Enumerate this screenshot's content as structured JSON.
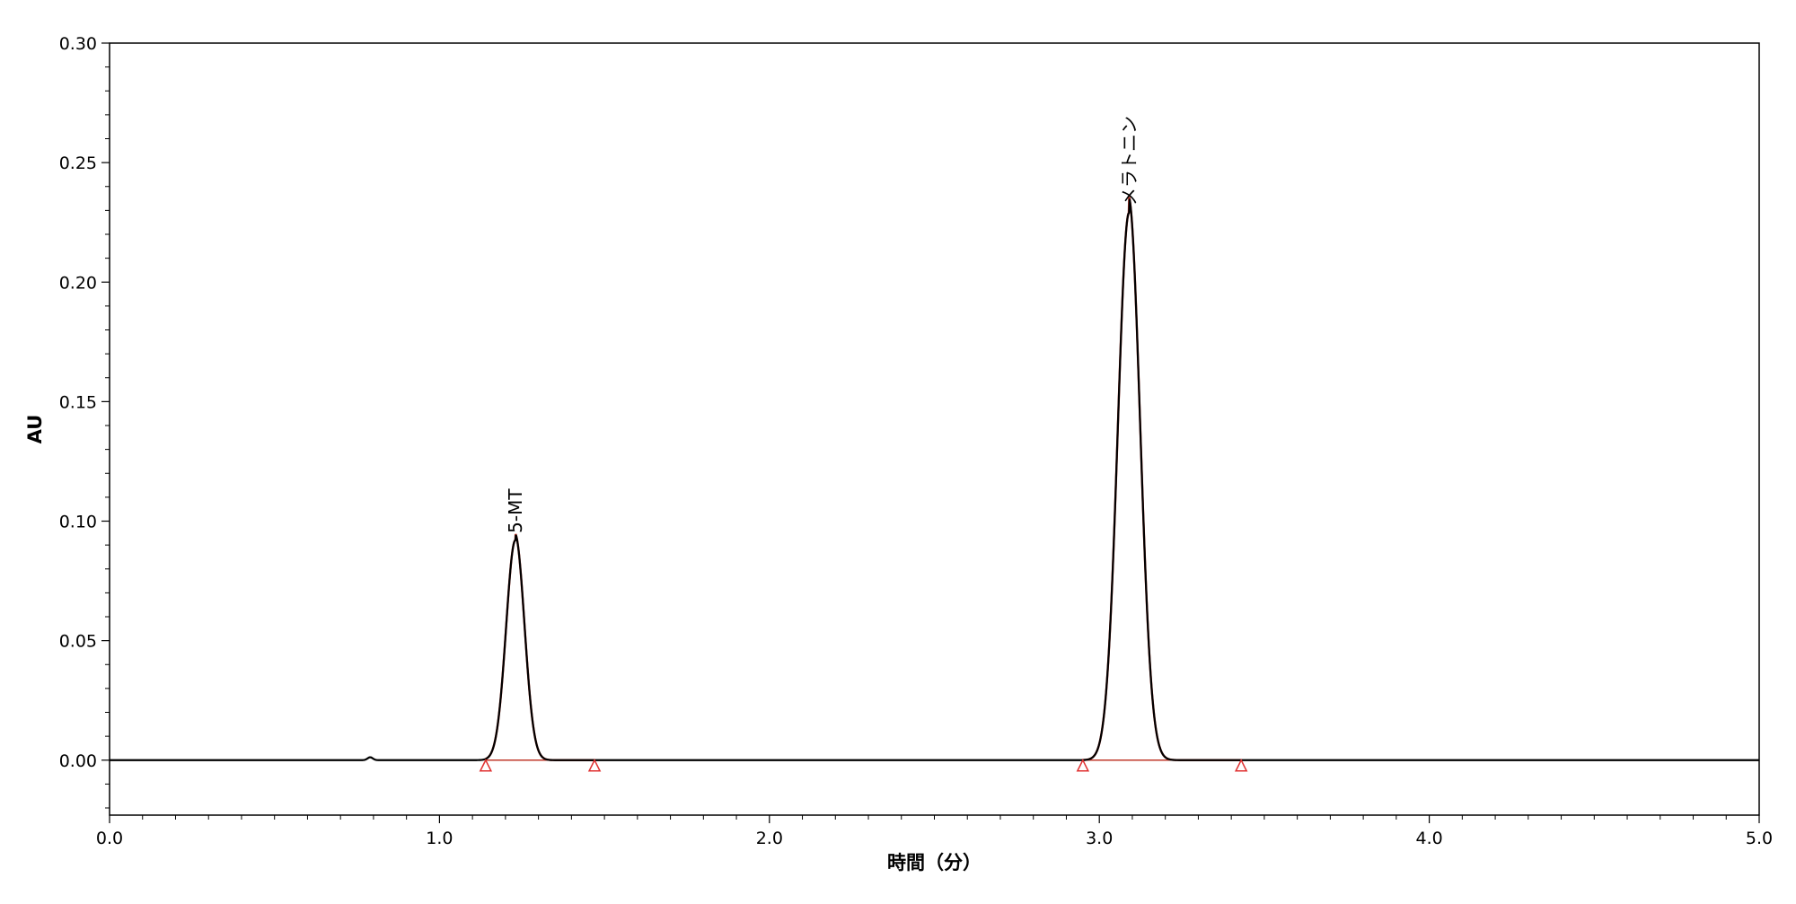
{
  "chart_data": {
    "type": "line",
    "xlabel": "時間（分）",
    "ylabel": "AU",
    "xlim": [
      0.0,
      5.0
    ],
    "ylim": [
      -0.023,
      0.3
    ],
    "x_ticks": [
      0.0,
      1.0,
      2.0,
      3.0,
      4.0,
      5.0
    ],
    "x_tick_labels": [
      "0.0",
      "1.0",
      "2.0",
      "3.0",
      "4.0",
      "5.0"
    ],
    "y_ticks": [
      0.0,
      0.05,
      0.1,
      0.15,
      0.2,
      0.25,
      0.3
    ],
    "y_tick_labels": [
      "0.00",
      "0.05",
      "0.10",
      "0.15",
      "0.20",
      "0.25",
      "0.30"
    ],
    "grid": false,
    "baseline": 0.0,
    "peaks": [
      {
        "label": "5-MT",
        "retention_time": 1.23,
        "height": 0.092,
        "width_sigma": 0.028,
        "tail": 0.012,
        "start": 1.14,
        "end": 1.47
      },
      {
        "label": "メラトニン",
        "retention_time": 3.09,
        "height": 0.229,
        "width_sigma": 0.034,
        "tail": 0.014,
        "start": 2.95,
        "end": 3.43
      }
    ],
    "minor_blip": {
      "x": 0.79,
      "height": 0.0012
    },
    "colors": {
      "trace": "#000000",
      "peak_fill_line": "#c0392b",
      "integration_marker": "#e03030",
      "axis": "#000000"
    }
  }
}
